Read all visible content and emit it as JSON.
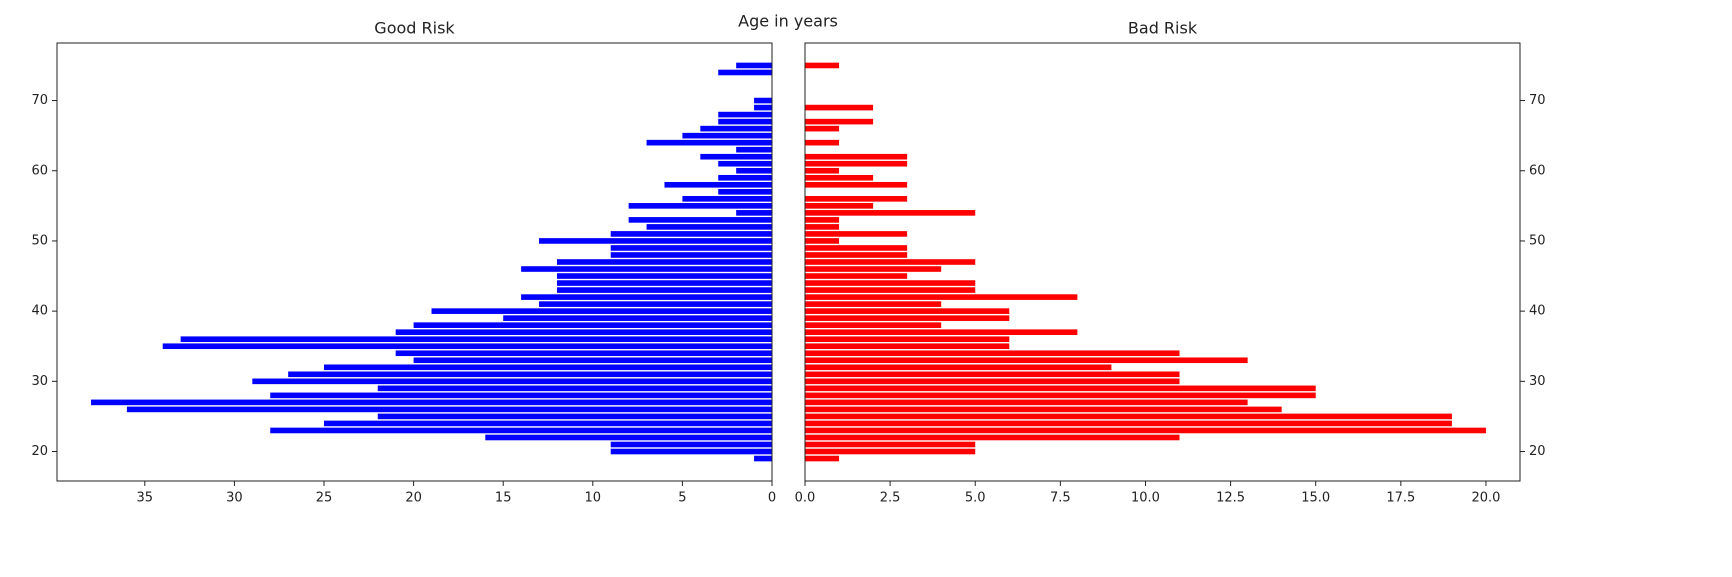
{
  "title": "Age in years",
  "chart_data": [
    {
      "type": "barh",
      "title": "Good Risk",
      "color": "#0000ff",
      "yaxis_side": "left",
      "y": [
        19,
        20,
        21,
        22,
        23,
        24,
        25,
        26,
        27,
        28,
        29,
        30,
        31,
        32,
        33,
        34,
        35,
        36,
        37,
        38,
        39,
        40,
        41,
        42,
        43,
        44,
        45,
        46,
        47,
        48,
        49,
        50,
        51,
        52,
        53,
        54,
        55,
        56,
        57,
        58,
        59,
        60,
        61,
        62,
        63,
        64,
        65,
        66,
        67,
        68,
        69,
        70,
        71,
        72,
        73,
        74,
        75
      ],
      "values": [
        1,
        9,
        9,
        16,
        28,
        25,
        22,
        36,
        38,
        28,
        22,
        29,
        27,
        25,
        20,
        21,
        34,
        33,
        21,
        20,
        15,
        19,
        13,
        14,
        12,
        12,
        12,
        14,
        12,
        9,
        9,
        13,
        9,
        7,
        8,
        2,
        8,
        5,
        3,
        6,
        3,
        2,
        3,
        4,
        2,
        7,
        5,
        4,
        3,
        3,
        1,
        1,
        0,
        0,
        0,
        3,
        2
      ],
      "xlim": [
        39.9,
        0
      ],
      "xticks": [
        35,
        30,
        25,
        20,
        15,
        10,
        5,
        0
      ],
      "ylim": [
        15.8,
        78.2
      ],
      "yticks": [
        20,
        30,
        40,
        50,
        60,
        70
      ]
    },
    {
      "type": "barh",
      "title": "Bad Risk",
      "color": "#ff0000",
      "yaxis_side": "right",
      "y": [
        19,
        20,
        21,
        22,
        23,
        24,
        25,
        26,
        27,
        28,
        29,
        30,
        31,
        32,
        33,
        34,
        35,
        36,
        37,
        38,
        39,
        40,
        41,
        42,
        43,
        44,
        45,
        46,
        47,
        48,
        49,
        50,
        51,
        52,
        53,
        54,
        55,
        56,
        57,
        58,
        59,
        60,
        61,
        62,
        63,
        64,
        65,
        66,
        67,
        68,
        69,
        70,
        71,
        72,
        73,
        74,
        75
      ],
      "values": [
        1,
        5,
        5,
        11,
        20,
        19,
        19,
        14,
        13,
        15,
        15,
        11,
        11,
        9,
        13,
        11,
        6,
        6,
        8,
        4,
        6,
        6,
        4,
        8,
        5,
        5,
        3,
        4,
        5,
        3,
        3,
        1,
        3,
        1,
        1,
        5,
        2,
        3,
        0,
        3,
        2,
        1,
        3,
        3,
        0,
        1,
        0,
        1,
        2,
        0,
        2,
        0,
        0,
        0,
        0,
        0,
        1
      ],
      "xlim": [
        0,
        21
      ],
      "xticks": [
        {
          "value": 0,
          "label": "0.0"
        },
        {
          "value": 2.5,
          "label": "2.5"
        },
        {
          "value": 5,
          "label": "5.0"
        },
        {
          "value": 7.5,
          "label": "7.5"
        },
        {
          "value": 10,
          "label": "10.0"
        },
        {
          "value": 12.5,
          "label": "12.5"
        },
        {
          "value": 15,
          "label": "15.0"
        },
        {
          "value": 17.5,
          "label": "17.5"
        },
        {
          "value": 20,
          "label": "20.0"
        }
      ],
      "ylim": [
        15.8,
        78.2
      ],
      "yticks": [
        20,
        30,
        40,
        50,
        60,
        70
      ]
    }
  ]
}
